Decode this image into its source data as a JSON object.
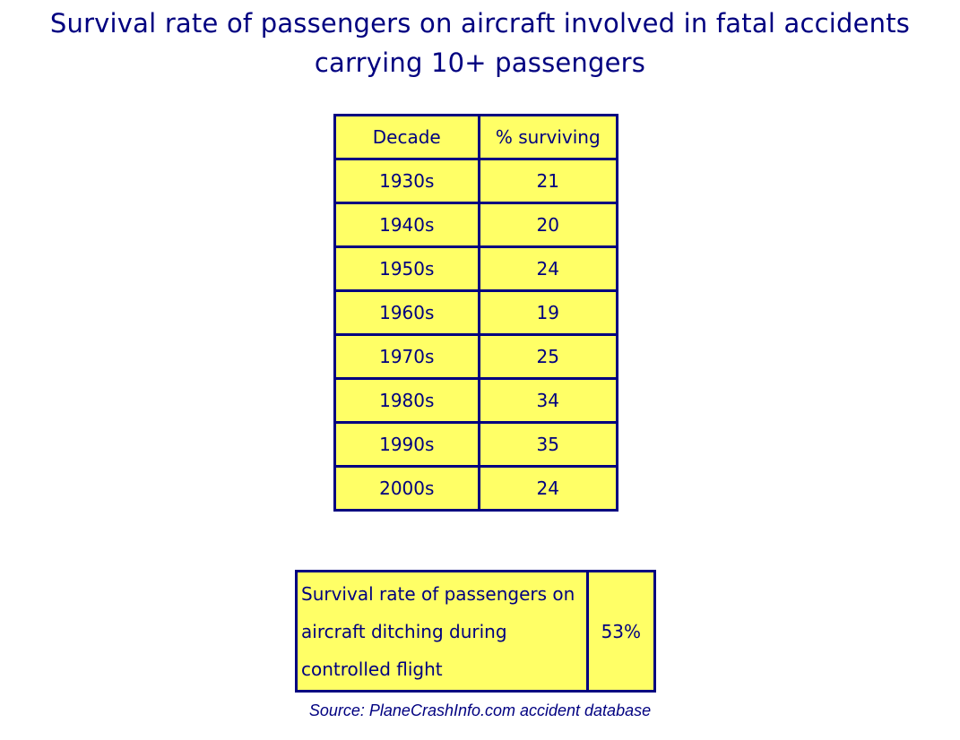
{
  "title": {
    "line1": "Survival rate of passengers on aircraft involved in fatal accidents",
    "line2": "carrying 10+ passengers"
  },
  "decade_table": {
    "headers": [
      "Decade",
      "% surviving"
    ],
    "rows": [
      {
        "decade": "1930s",
        "surviving": "21"
      },
      {
        "decade": "1940s",
        "surviving": "20"
      },
      {
        "decade": "1950s",
        "surviving": "24"
      },
      {
        "decade": "1960s",
        "surviving": "19"
      },
      {
        "decade": "1970s",
        "surviving": "25"
      },
      {
        "decade": "1980s",
        "surviving": "34"
      },
      {
        "decade": "1990s",
        "surviving": "35"
      },
      {
        "decade": "2000s",
        "surviving": "24"
      }
    ]
  },
  "ditching": {
    "label": "Survival rate of passengers on aircraft ditching during controlled flight",
    "value": "53%"
  },
  "source": "Source: PlaneCrashInfo.com accident database",
  "colors": {
    "text": "#000080",
    "cell_fill": "#ffff66",
    "border": "#000080"
  }
}
